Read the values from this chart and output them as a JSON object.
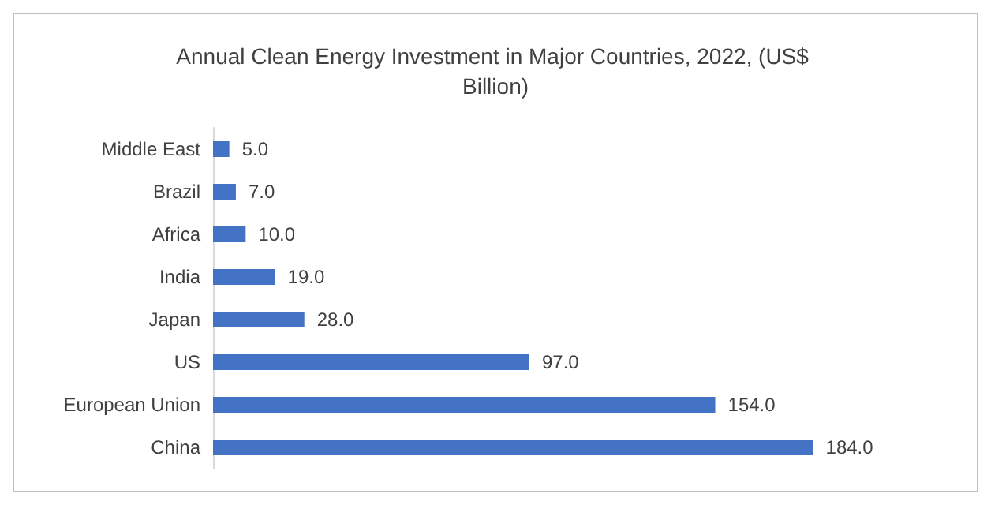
{
  "chart_data": {
    "type": "bar",
    "orientation": "horizontal",
    "title": "Annual Clean Energy Investment in Major Countries, 2022, (US$ Billion)",
    "categories": [
      "Middle East",
      "Brazil",
      "Africa",
      "India",
      "Japan",
      "US",
      "European Union",
      "China"
    ],
    "values": [
      5.0,
      7.0,
      10.0,
      19.0,
      28.0,
      97.0,
      154.0,
      184.0
    ],
    "value_labels": [
      "5.0",
      "7.0",
      "10.0",
      "19.0",
      "28.0",
      "97.0",
      "154.0",
      "184.0"
    ],
    "color": "#4472c4",
    "grid": false,
    "tick_labels": "y"
  }
}
